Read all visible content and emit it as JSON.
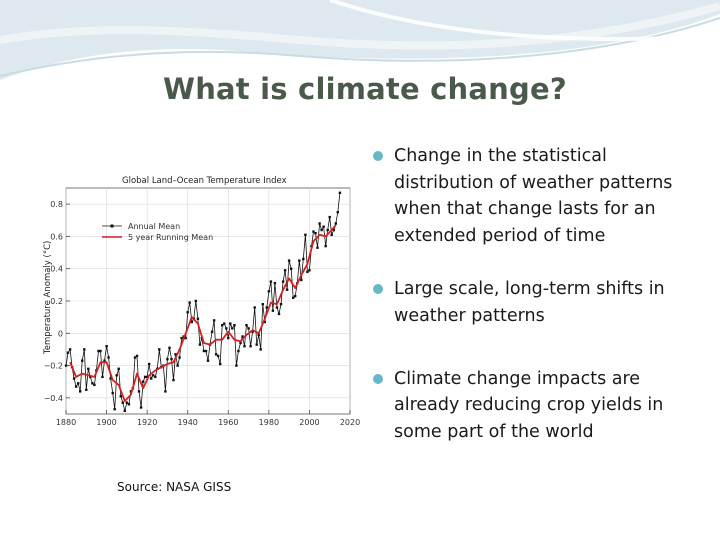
{
  "slide": {
    "title": "What is climate change?",
    "bullets": [
      "Change in the statistical distribution of weather patterns when that change lasts for an extended period of time",
      "Large scale, long-term shifts in weather patterns",
      "Climate change impacts are already reducing crop yields in some part of the world"
    ],
    "source": "Source: NASA GISS"
  },
  "colors": {
    "title": "#4a5a4a",
    "bullet": "#68b8c8",
    "annual": "#111111",
    "running": "#d42020"
  },
  "chart_data": {
    "type": "line",
    "title": "Global Land–Ocean Temperature Index",
    "xlabel": "",
    "ylabel": "Temperature Anomaly (°C)",
    "xlim": [
      1880,
      2020
    ],
    "ylim": [
      -0.5,
      0.9
    ],
    "x_ticks": [
      "1880",
      "1900",
      "1920",
      "1940",
      "1960",
      "1980",
      "2000",
      "2020"
    ],
    "y_ticks": [
      "−0.4",
      "−0.2",
      "0",
      "0.2",
      "0.4",
      "0.6",
      "0.8"
    ],
    "legend_position": "top-left",
    "grid": true,
    "series": [
      {
        "name": "Annual Mean",
        "x": [
          1880,
          1881,
          1882,
          1883,
          1884,
          1885,
          1886,
          1887,
          1888,
          1889,
          1890,
          1891,
          1892,
          1893,
          1894,
          1895,
          1896,
          1897,
          1898,
          1899,
          1900,
          1901,
          1902,
          1903,
          1904,
          1905,
          1906,
          1907,
          1908,
          1909,
          1910,
          1911,
          1912,
          1913,
          1914,
          1915,
          1916,
          1917,
          1918,
          1919,
          1920,
          1921,
          1922,
          1923,
          1924,
          1925,
          1926,
          1927,
          1928,
          1929,
          1930,
          1931,
          1932,
          1933,
          1934,
          1935,
          1936,
          1937,
          1938,
          1939,
          1940,
          1941,
          1942,
          1943,
          1944,
          1945,
          1946,
          1947,
          1948,
          1949,
          1950,
          1951,
          1952,
          1953,
          1954,
          1955,
          1956,
          1957,
          1958,
          1959,
          1960,
          1961,
          1962,
          1963,
          1964,
          1965,
          1966,
          1967,
          1968,
          1969,
          1970,
          1971,
          1972,
          1973,
          1974,
          1975,
          1976,
          1977,
          1978,
          1979,
          1980,
          1981,
          1982,
          1983,
          1984,
          1985,
          1986,
          1987,
          1988,
          1989,
          1990,
          1991,
          1992,
          1993,
          1994,
          1995,
          1996,
          1997,
          1998,
          1999,
          2000,
          2001,
          2002,
          2003,
          2004,
          2005,
          2006,
          2007,
          2008,
          2009,
          2010,
          2011,
          2012,
          2013,
          2014,
          2015
        ],
        "values": [
          -0.2,
          -0.12,
          -0.1,
          -0.21,
          -0.28,
          -0.33,
          -0.31,
          -0.36,
          -0.17,
          -0.1,
          -0.35,
          -0.22,
          -0.27,
          -0.31,
          -0.32,
          -0.23,
          -0.11,
          -0.11,
          -0.27,
          -0.17,
          -0.08,
          -0.15,
          -0.28,
          -0.37,
          -0.47,
          -0.26,
          -0.22,
          -0.39,
          -0.43,
          -0.48,
          -0.43,
          -0.44,
          -0.36,
          -0.34,
          -0.15,
          -0.14,
          -0.36,
          -0.46,
          -0.3,
          -0.27,
          -0.27,
          -0.19,
          -0.28,
          -0.26,
          -0.27,
          -0.22,
          -0.1,
          -0.21,
          -0.2,
          -0.36,
          -0.16,
          -0.09,
          -0.16,
          -0.29,
          -0.13,
          -0.2,
          -0.15,
          -0.03,
          -0.02,
          -0.03,
          0.13,
          0.19,
          0.07,
          0.09,
          0.2,
          0.09,
          -0.07,
          -0.03,
          -0.11,
          -0.11,
          -0.17,
          -0.07,
          0.01,
          0.08,
          -0.13,
          -0.14,
          -0.19,
          0.05,
          0.06,
          0.03,
          -0.03,
          0.06,
          0.03,
          0.05,
          -0.2,
          -0.11,
          -0.06,
          -0.02,
          -0.08,
          0.05,
          0.03,
          -0.08,
          0.01,
          0.16,
          -0.07,
          -0.01,
          -0.1,
          0.18,
          0.07,
          0.16,
          0.26,
          0.32,
          0.14,
          0.31,
          0.16,
          0.12,
          0.18,
          0.32,
          0.39,
          0.27,
          0.45,
          0.4,
          0.22,
          0.23,
          0.31,
          0.45,
          0.33,
          0.46,
          0.61,
          0.38,
          0.39,
          0.54,
          0.63,
          0.62,
          0.53,
          0.68,
          0.64,
          0.66,
          0.54,
          0.64,
          0.72,
          0.61,
          0.64,
          0.68,
          0.75,
          0.87
        ]
      },
      {
        "name": "5 year Running Mean",
        "x": [
          1882,
          1885,
          1888,
          1891,
          1894,
          1897,
          1900,
          1903,
          1906,
          1909,
          1912,
          1915,
          1918,
          1921,
          1924,
          1927,
          1930,
          1933,
          1936,
          1939,
          1942,
          1945,
          1948,
          1951,
          1954,
          1957,
          1960,
          1963,
          1966,
          1969,
          1972,
          1975,
          1978,
          1981,
          1984,
          1987,
          1990,
          1993,
          1996,
          1999,
          2002,
          2005,
          2008,
          2011,
          2013
        ],
        "values": [
          -0.18,
          -0.27,
          -0.25,
          -0.26,
          -0.27,
          -0.18,
          -0.18,
          -0.29,
          -0.32,
          -0.42,
          -0.38,
          -0.25,
          -0.34,
          -0.26,
          -0.23,
          -0.21,
          -0.19,
          -0.18,
          -0.1,
          0.0,
          0.1,
          0.06,
          -0.06,
          -0.07,
          -0.04,
          -0.04,
          0.01,
          -0.04,
          -0.05,
          -0.01,
          0.02,
          0.0,
          0.09,
          0.19,
          0.18,
          0.27,
          0.34,
          0.28,
          0.36,
          0.43,
          0.57,
          0.61,
          0.6,
          0.64,
          0.67
        ]
      }
    ]
  }
}
